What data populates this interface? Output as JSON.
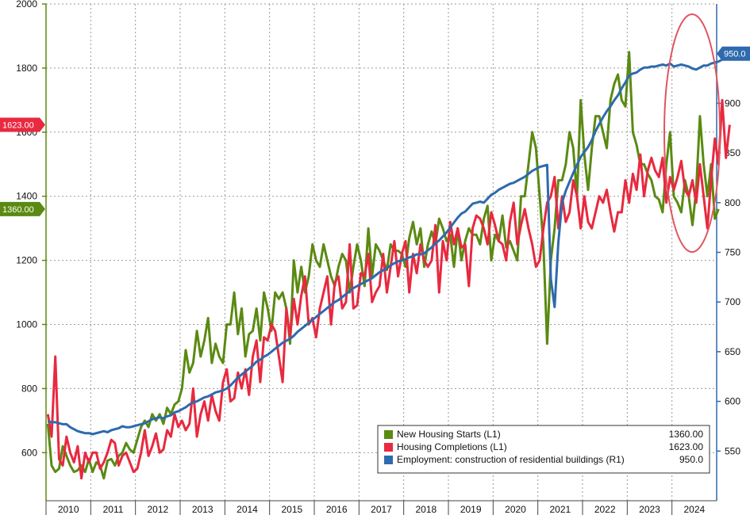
{
  "chart_data": {
    "type": "line",
    "title": "",
    "x_labels": [
      "2010",
      "2011",
      "2012",
      "2013",
      "2014",
      "2015",
      "2016",
      "2017",
      "2018",
      "2019",
      "2020",
      "2021",
      "2022",
      "2023",
      "2024"
    ],
    "left_axis": {
      "ylim": [
        450,
        2000
      ],
      "ticks": [
        600,
        800,
        1000,
        1200,
        1400,
        1600,
        1800,
        2000
      ]
    },
    "right_axis": {
      "ylim": [
        500,
        1000
      ],
      "ticks": [
        550,
        600,
        650,
        700,
        750,
        800,
        850,
        900
      ]
    },
    "series": [
      {
        "name": "New Housing Starts (L1)",
        "axis": "left",
        "color": "#5a8a12",
        "last_value_label": "1360.00",
        "tag_label": "1360.00",
        "values": [
          690,
          560,
          540,
          550,
          620,
          590,
          560,
          540,
          545,
          560,
          540,
          580,
          540,
          570,
          560,
          520,
          575,
          580,
          560,
          590,
          600,
          630,
          610,
          600,
          640,
          680,
          700,
          680,
          720,
          700,
          720,
          690,
          740,
          720,
          750,
          760,
          800,
          920,
          850,
          880,
          980,
          900,
          950,
          1020,
          880,
          940,
          900,
          880,
          1000,
          1000,
          1100,
          970,
          1050,
          900,
          970,
          980,
          1050,
          950,
          1100,
          1050,
          980,
          1100,
          1080,
          1100,
          1050,
          940,
          1200,
          1100,
          1180,
          1100,
          1150,
          1250,
          1200,
          1180,
          1250,
          1200,
          1150,
          1120,
          1180,
          1220,
          1200,
          1100,
          1180,
          1250,
          1200,
          1120,
          1300,
          1150,
          1250,
          1230,
          1200,
          1170,
          1250,
          1230,
          1230,
          1220,
          1180,
          1270,
          1320,
          1250,
          1300,
          1180,
          1250,
          1290,
          1250,
          1330,
          1300,
          1260,
          1280,
          1180,
          1300,
          1200,
          1260,
          1300,
          1280,
          1280,
          1250,
          1330,
          1370,
          1200,
          1280,
          1260,
          1340,
          1240,
          1260,
          1230,
          1200,
          1400,
          1400,
          1500,
          1600,
          1550,
          1400,
          1250,
          940,
          1200,
          1300,
          1450,
          1450,
          1500,
          1600,
          1550,
          1400,
          1700,
          1530,
          1420,
          1550,
          1650,
          1650,
          1600,
          1550,
          1700,
          1750,
          1780,
          1700,
          1680,
          1850,
          1600,
          1560,
          1500,
          1500,
          1470,
          1450,
          1400,
          1390,
          1350,
          1500,
          1600,
          1400,
          1380,
          1350,
          1450,
          1400,
          1310,
          1420,
          1650,
          1500,
          1400,
          1500,
          1330,
          1360
        ]
      },
      {
        "name": "Housing Completions (L1)",
        "axis": "left",
        "color": "#e8293f",
        "last_value_label": "1623.00",
        "tag_label": "1623.00",
        "values": [
          720,
          650,
          900,
          580,
          560,
          650,
          600,
          570,
          620,
          520,
          600,
          570,
          600,
          600,
          550,
          570,
          600,
          640,
          630,
          560,
          590,
          600,
          570,
          540,
          550,
          600,
          670,
          590,
          620,
          660,
          600,
          610,
          670,
          650,
          720,
          680,
          700,
          670,
          690,
          800,
          650,
          720,
          760,
          700,
          780,
          730,
          700,
          820,
          860,
          760,
          770,
          850,
          800,
          860,
          780,
          900,
          950,
          820,
          960,
          950,
          1000,
          980,
          900,
          820,
          1050,
          960,
          1080,
          1000,
          1090,
          1150,
          1000,
          1020,
          960,
          1050,
          1100,
          1150,
          1000,
          1130,
          1150,
          1050,
          1070,
          1250,
          1050,
          1060,
          1160,
          1150,
          1220,
          1070,
          1100,
          1120,
          1220,
          1100,
          1180,
          1260,
          1150,
          1220,
          1260,
          1100,
          1220,
          1160,
          1250,
          1200,
          1180,
          1200,
          1310,
          1100,
          1260,
          1200,
          1320,
          1250,
          1300,
          1240,
          1250,
          1120,
          1300,
          1340,
          1330,
          1300,
          1250,
          1350,
          1310,
          1260,
          1250,
          1200,
          1320,
          1380,
          1250,
          1310,
          1360,
          1300,
          1250,
          1180,
          1200,
          1300,
          1380,
          1400,
          1460,
          1300,
          1400,
          1320,
          1350,
          1450,
          1400,
          1300,
          1400,
          1320,
          1300,
          1350,
          1400,
          1380,
          1420,
          1350,
          1290,
          1350,
          1350,
          1450,
          1380,
          1470,
          1420,
          1530,
          1400,
          1480,
          1520,
          1480,
          1460,
          1520,
          1380,
          1460,
          1420,
          1460,
          1510,
          1420,
          1400,
          1450,
          1380,
          1500,
          1400,
          1300,
          1450,
          1580,
          1500,
          1700,
          1520,
          1623
        ]
      },
      {
        "name": "Employment: construction of residential buildings (R1)",
        "axis": "right",
        "color": "#2e6aad",
        "last_value_label": "950.0",
        "tag_label": "950.0",
        "values": [
          580,
          579,
          579,
          578,
          577,
          577,
          574,
          572,
          570,
          569,
          568,
          568,
          567,
          568,
          569,
          570,
          569,
          571,
          572,
          573,
          575,
          574,
          574,
          575,
          576,
          577,
          578,
          580,
          582,
          583,
          584,
          583,
          585,
          586,
          589,
          590,
          592,
          594,
          597,
          599,
          600,
          602,
          604,
          605,
          607,
          609,
          610,
          611,
          613,
          616,
          620,
          624,
          627,
          630,
          633,
          636,
          640,
          642,
          645,
          647,
          650,
          653,
          656,
          659,
          661,
          663,
          666,
          670,
          673,
          676,
          679,
          682,
          685,
          688,
          691,
          694,
          697,
          700,
          702,
          705,
          708,
          711,
          714,
          716,
          718,
          720,
          722,
          724,
          727,
          730,
          732,
          734,
          737,
          739,
          741,
          742,
          743,
          745,
          746,
          748,
          748,
          749,
          752,
          755,
          759,
          762,
          766,
          770,
          775,
          780,
          785,
          789,
          791,
          795,
          799,
          800,
          801,
          800,
          804,
          808,
          810,
          813,
          815,
          817,
          819,
          820,
          822,
          824,
          826,
          829,
          832,
          834,
          836,
          837,
          838,
          723,
          695,
          760,
          800,
          812,
          821,
          830,
          838,
          846,
          851,
          856,
          863,
          872,
          879,
          886,
          892,
          897,
          903,
          908,
          915,
          921,
          928,
          930,
          931,
          934,
          936,
          936,
          937,
          937,
          938,
          939,
          938,
          940,
          937,
          938,
          939,
          938,
          937,
          935,
          934,
          936,
          938,
          938,
          940,
          941,
          942,
          944,
          949,
          950
        ]
      }
    ],
    "legend": {
      "entries": [
        {
          "label": "New Housing Starts (L1)",
          "value": "1360.00",
          "color": "#5a8a12"
        },
        {
          "label": "Housing Completions (L1)",
          "value": "1623.00",
          "color": "#e8293f"
        },
        {
          "label": "Employment: construction of residential buildings (R1)",
          "value": "950.0",
          "color": "#2e6aad"
        }
      ],
      "position": "bottom-right"
    },
    "annotation": {
      "type": "ellipse",
      "color": "#e05560",
      "note": "highlight of latest readings"
    },
    "grid": true
  }
}
